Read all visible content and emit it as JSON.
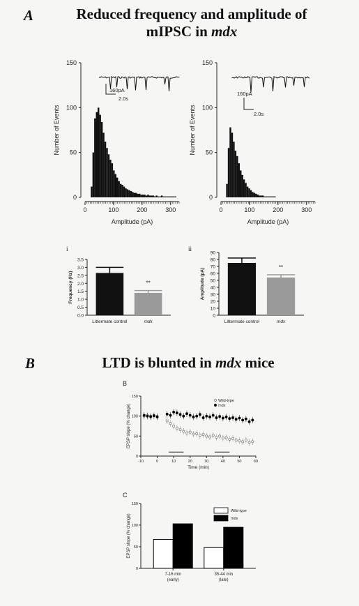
{
  "section_a": {
    "letter": "A",
    "title_line1": "Reduced frequency and amplitude of",
    "title_line2_main": "mIPSC in ",
    "title_line2_em": "mdx"
  },
  "section_b": {
    "letter": "B",
    "title_main": "LTD is blunted in ",
    "title_em": "mdx",
    "title_tail": " mice"
  },
  "scale_bars": {
    "left": {
      "amp": "160pA",
      "time": "2.0s"
    },
    "right": {
      "amp": "160pA",
      "time": "2.0s"
    }
  },
  "panel_labels": {
    "i": "i",
    "ii": "ii",
    "B": "B",
    "C": "C"
  },
  "chart_data": [
    {
      "id": "hist_control",
      "type": "bar",
      "xlabel": "Amplitude (pA)",
      "ylabel": "Number of Events",
      "xlim": [
        0,
        330
      ],
      "ylim": [
        0,
        150
      ],
      "xticks": [
        0,
        100,
        200,
        300
      ],
      "yticks": [
        0,
        50,
        100,
        150
      ],
      "bin_width": 6,
      "bin_start": 20,
      "values": [
        12,
        50,
        88,
        95,
        100,
        92,
        84,
        72,
        62,
        55,
        48,
        42,
        38,
        30,
        26,
        22,
        18,
        15,
        14,
        12,
        10,
        9,
        8,
        7,
        6,
        5,
        5,
        4,
        4,
        3,
        3,
        3,
        2,
        3,
        2,
        2,
        2,
        1,
        2,
        1,
        1,
        2,
        1,
        1,
        1,
        1,
        1,
        1,
        1,
        1
      ]
    },
    {
      "id": "hist_mdx",
      "type": "bar",
      "xlabel": "Amplitude (pA)",
      "ylabel": "Number of Events",
      "xlim": [
        0,
        330
      ],
      "ylim": [
        0,
        150
      ],
      "xticks": [
        0,
        100,
        200,
        300
      ],
      "yticks": [
        0,
        50,
        100,
        150
      ],
      "bin_width": 6,
      "bin_start": 18,
      "values": [
        15,
        55,
        78,
        72,
        62,
        52,
        46,
        38,
        30,
        25,
        20,
        16,
        12,
        10,
        8,
        6,
        5,
        4,
        3,
        2,
        2,
        2,
        1,
        1,
        1,
        1,
        1,
        1,
        1
      ]
    },
    {
      "id": "frequency_bar",
      "type": "bar",
      "ylabel": "Frequency (Hz)",
      "ylim": [
        0,
        3.5
      ],
      "yticks": [
        "0.0",
        "0.5",
        "1.0",
        "1.5",
        "2.0",
        "2.5",
        "3.0",
        "3.5"
      ],
      "categories": [
        "Littermate control",
        "mdx"
      ],
      "values": [
        2.65,
        1.4
      ],
      "errors": [
        0.35,
        0.15
      ],
      "colors": [
        "#111111",
        "#9a9a9a"
      ],
      "annotation": "**"
    },
    {
      "id": "amplitude_bar",
      "type": "bar",
      "ylabel": "Amplitude (pA)",
      "ylim": [
        0,
        90
      ],
      "yticks": [
        "0",
        "10",
        "20",
        "30",
        "40",
        "50",
        "60",
        "70",
        "80",
        "90"
      ],
      "categories": [
        "Littermate control",
        "mdx"
      ],
      "values": [
        75,
        54
      ],
      "errors": [
        7,
        4
      ],
      "colors": [
        "#111111",
        "#9a9a9a"
      ],
      "annotation": "**"
    },
    {
      "id": "ltd_timecourse",
      "type": "scatter",
      "xlabel": "Time (min)",
      "ylabel": "EPSP slope (% change)",
      "xlim": [
        -10,
        60
      ],
      "ylim": [
        0,
        150
      ],
      "xticks": [
        -10,
        0,
        10,
        20,
        30,
        40,
        50,
        60
      ],
      "yticks": [
        0,
        50,
        100,
        150
      ],
      "legend": [
        "Wild-type",
        "mdx"
      ],
      "legend_position": "top-right",
      "series": [
        {
          "name": "Wild-type",
          "marker": "open",
          "x": [
            -8,
            -6,
            -4,
            -2,
            0,
            6,
            8,
            10,
            12,
            14,
            16,
            18,
            20,
            22,
            24,
            26,
            28,
            30,
            32,
            34,
            36,
            38,
            40,
            42,
            44,
            46,
            48,
            50,
            52,
            54,
            56,
            58
          ],
          "y": [
            100,
            102,
            98,
            101,
            99,
            88,
            82,
            75,
            70,
            66,
            62,
            58,
            60,
            55,
            56,
            52,
            54,
            50,
            48,
            52,
            47,
            50,
            45,
            46,
            42,
            44,
            40,
            38,
            36,
            40,
            34,
            36
          ]
        },
        {
          "name": "mdx",
          "marker": "filled",
          "x": [
            -8,
            -6,
            -4,
            -2,
            0,
            6,
            8,
            10,
            12,
            14,
            16,
            18,
            20,
            22,
            24,
            26,
            28,
            30,
            32,
            34,
            36,
            38,
            40,
            42,
            44,
            46,
            48,
            50,
            52,
            54,
            56,
            58
          ],
          "y": [
            102,
            100,
            99,
            101,
            98,
            105,
            102,
            110,
            108,
            104,
            100,
            106,
            102,
            98,
            100,
            104,
            96,
            100,
            98,
            102,
            96,
            99,
            95,
            98,
            94,
            96,
            92,
            95,
            90,
            93,
            86,
            90
          ]
        }
      ],
      "bar_markers": [
        [
          7,
          16
        ],
        [
          35,
          44
        ]
      ]
    },
    {
      "id": "ltd_summary",
      "type": "bar",
      "ylabel": "EPSP slope (% change)",
      "ylim": [
        0,
        150
      ],
      "yticks": [
        0,
        50,
        100,
        150
      ],
      "categories": [
        "7-16 min (early)",
        "35-44 min (late)"
      ],
      "category_lines": [
        [
          "7-16 min",
          "(early)"
        ],
        [
          "35-44 min",
          "(late)"
        ]
      ],
      "series": [
        {
          "name": "Wild-type",
          "values": [
            67,
            48
          ],
          "color": "#ffffff"
        },
        {
          "name": "mdx",
          "values": [
            103,
            95
          ],
          "color": "#000000"
        }
      ],
      "legend_position": "top-right"
    }
  ]
}
